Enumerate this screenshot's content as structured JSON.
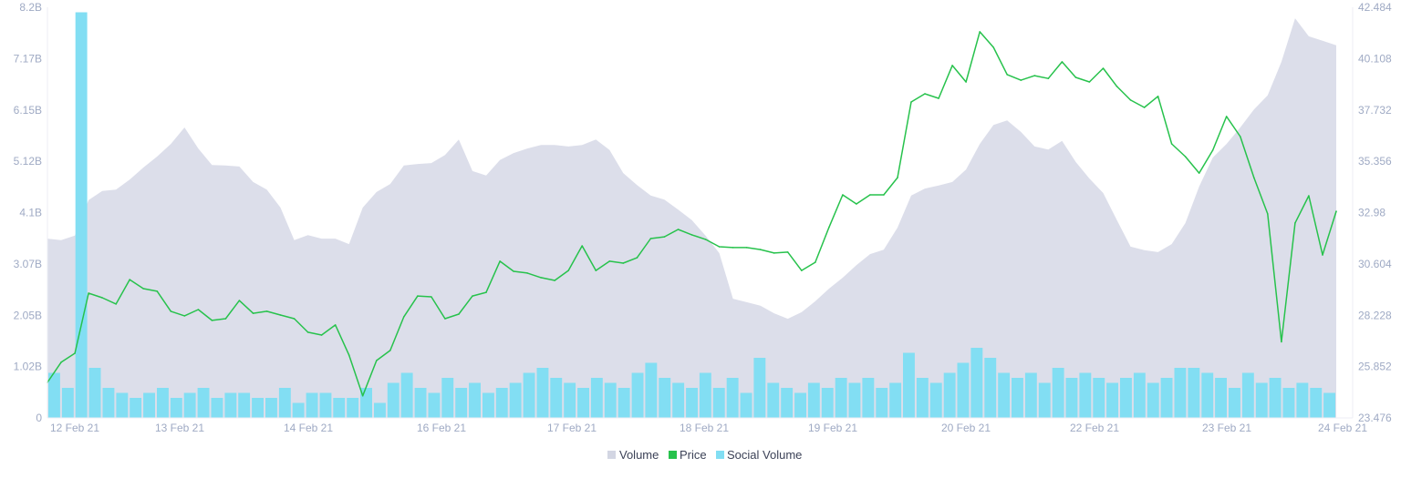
{
  "chart_data": {
    "type": "area+line+bar",
    "legend_position": "bottom-center",
    "grid": false,
    "colors": {
      "Volume": "#dcdeea",
      "Price": "#27c24c",
      "Social Volume": "#82def3",
      "axis_text": "#9faac4"
    },
    "x_ticks": [
      "12 Feb 21",
      "13 Feb 21",
      "14 Feb 21",
      "16 Feb 21",
      "17 Feb 21",
      "18 Feb 21",
      "19 Feb 21",
      "20 Feb 21",
      "22 Feb 21",
      "23 Feb 21",
      "24 Feb 21"
    ],
    "y_left": {
      "ticks": [
        "0",
        "1.02B",
        "2.05B",
        "3.07B",
        "4.1B",
        "5.12B",
        "6.15B",
        "7.17B",
        "8.2B"
      ],
      "range": [
        0,
        8.2
      ],
      "unit": "B"
    },
    "y_right": {
      "ticks": [
        "23.476",
        "25.852",
        "28.228",
        "30.604",
        "32.98",
        "35.356",
        "37.732",
        "40.108",
        "42.484"
      ],
      "range": [
        23.476,
        42.484
      ]
    },
    "series": [
      {
        "name": "Volume",
        "axis": "left",
        "style": "area",
        "values": [
          3.58,
          3.55,
          3.64,
          4.35,
          4.53,
          4.56,
          4.76,
          5.0,
          5.22,
          5.47,
          5.8,
          5.38,
          5.05,
          5.04,
          5.02,
          4.71,
          4.56,
          4.2,
          3.55,
          3.65,
          3.58,
          3.58,
          3.47,
          4.2,
          4.51,
          4.67,
          5.04,
          5.07,
          5.09,
          5.25,
          5.56,
          4.93,
          4.84,
          5.15,
          5.29,
          5.38,
          5.45,
          5.45,
          5.42,
          5.45,
          5.56,
          5.35,
          4.89,
          4.65,
          4.44,
          4.36,
          4.16,
          3.95,
          3.64,
          3.29,
          2.38,
          2.31,
          2.24,
          2.09,
          1.98,
          2.11,
          2.33,
          2.58,
          2.8,
          3.05,
          3.27,
          3.36,
          3.8,
          4.44,
          4.58,
          4.64,
          4.71,
          4.96,
          5.47,
          5.85,
          5.94,
          5.71,
          5.42,
          5.36,
          5.53,
          5.11,
          4.78,
          4.49,
          3.95,
          3.42,
          3.35,
          3.31,
          3.47,
          3.89,
          4.62,
          5.2,
          5.47,
          5.8,
          6.16,
          6.44,
          7.11,
          7.98,
          7.62,
          7.53,
          7.44
        ]
      },
      {
        "name": "Price",
        "axis": "right",
        "style": "line",
        "values": [
          25.12,
          26.05,
          26.47,
          29.25,
          29.04,
          28.75,
          29.88,
          29.46,
          29.34,
          28.41,
          28.2,
          28.49,
          27.99,
          28.07,
          28.91,
          28.32,
          28.41,
          28.24,
          28.07,
          27.44,
          27.31,
          27.78,
          26.38,
          24.5,
          26.13,
          26.6,
          28.16,
          29.12,
          29.08,
          28.07,
          28.28,
          29.12,
          29.29,
          30.73,
          30.26,
          30.18,
          29.97,
          29.84,
          30.3,
          31.44,
          30.3,
          30.73,
          30.64,
          30.89,
          31.78,
          31.86,
          32.2,
          31.95,
          31.74,
          31.4,
          31.36,
          31.36,
          31.27,
          31.11,
          31.15,
          30.3,
          30.68,
          32.29,
          33.8,
          33.38,
          33.8,
          33.8,
          34.6,
          38.1,
          38.48,
          38.27,
          39.79,
          39.03,
          41.35,
          40.63,
          39.37,
          39.11,
          39.32,
          39.19,
          39.96,
          39.24,
          39.03,
          39.66,
          38.82,
          38.19,
          37.85,
          38.36,
          36.16,
          35.57,
          34.81,
          35.87,
          37.43,
          36.5,
          34.6,
          32.92,
          27.0,
          32.5,
          33.76,
          31.02,
          33.04
        ]
      },
      {
        "name": "Social Volume",
        "axis": "left",
        "style": "bar",
        "values": [
          0.9,
          0.6,
          8.1,
          1.0,
          0.6,
          0.5,
          0.4,
          0.5,
          0.6,
          0.4,
          0.5,
          0.6,
          0.4,
          0.5,
          0.5,
          0.4,
          0.4,
          0.6,
          0.3,
          0.5,
          0.5,
          0.4,
          0.4,
          0.6,
          0.3,
          0.7,
          0.9,
          0.6,
          0.5,
          0.8,
          0.6,
          0.7,
          0.5,
          0.6,
          0.7,
          0.9,
          1.0,
          0.8,
          0.7,
          0.6,
          0.8,
          0.7,
          0.6,
          0.9,
          1.1,
          0.8,
          0.7,
          0.6,
          0.9,
          0.6,
          0.8,
          0.5,
          1.2,
          0.7,
          0.6,
          0.5,
          0.7,
          0.6,
          0.8,
          0.7,
          0.8,
          0.6,
          0.7,
          1.3,
          0.8,
          0.7,
          0.9,
          1.1,
          1.4,
          1.2,
          0.9,
          0.8,
          0.9,
          0.7,
          1.0,
          0.8,
          0.9,
          0.8,
          0.7,
          0.8,
          0.9,
          0.7,
          0.8,
          1.0,
          1.0,
          0.9,
          0.8,
          0.6,
          0.9,
          0.7,
          0.8,
          0.6,
          0.7,
          0.6,
          0.5
        ]
      }
    ],
    "legend": [
      "Volume",
      "Price",
      "Social Volume"
    ]
  }
}
